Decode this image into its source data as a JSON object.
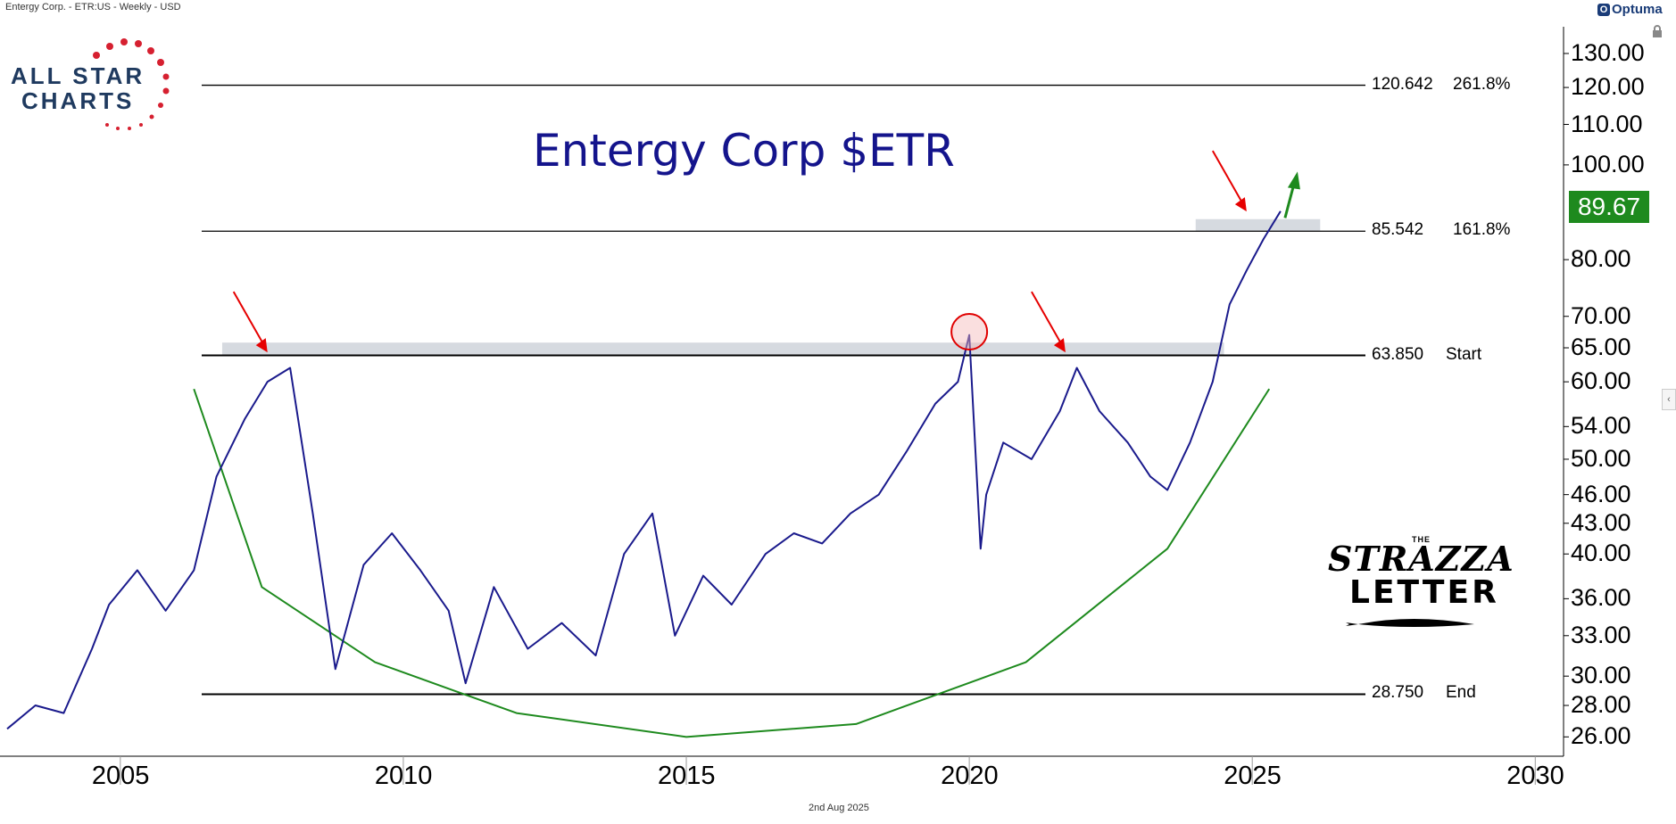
{
  "header": {
    "info": "Entergy Corp. - ETR:US - Weekly - USD",
    "brand": "Optuma"
  },
  "footer": {
    "date": "2nd Aug 2025"
  },
  "logos": {
    "left": {
      "line1": "ALL STAR",
      "line2": "CHARTS"
    },
    "right": {
      "the": "THE",
      "word1": "STRAZZA",
      "word2": "LETTER"
    }
  },
  "colors": {
    "price": "#1a1a8c",
    "arc": "#1e8a1e",
    "arrow_red": "#e60000",
    "arrow_green": "#1e8a1e",
    "zone": "#c8ced6",
    "last_price_bg": "#1e8a1e"
  },
  "chart_data": {
    "type": "line",
    "title": "Entergy Corp $ETR",
    "scale": "log",
    "ylim": [
      25,
      135
    ],
    "xlim": [
      2003.0,
      2030.5
    ],
    "x_ticks": [
      "2005",
      "2010",
      "2015",
      "2020",
      "2025",
      "2030"
    ],
    "y_ticks": [
      "130.00",
      "120.00",
      "110.00",
      "100.00",
      "80.00",
      "70.00",
      "65.00",
      "60.00",
      "54.00",
      "50.00",
      "46.00",
      "43.00",
      "40.00",
      "36.00",
      "33.00",
      "30.00",
      "28.00",
      "26.00"
    ],
    "last_price": "89.67",
    "levels": [
      {
        "value": "120.642",
        "label": "261.8%",
        "y": 120.642
      },
      {
        "value": "85.542",
        "label": "161.8%",
        "y": 85.542
      },
      {
        "value": "63.850",
        "label": "Start",
        "y": 63.85
      },
      {
        "value": "28.750",
        "label": "End",
        "y": 28.75
      }
    ],
    "series": [
      {
        "x": [
          2003.0,
          2003.5,
          2004.0,
          2004.5,
          2004.8,
          2005.3,
          2005.8,
          2006.3,
          2006.7,
          2007.2,
          2007.6,
          2008.0,
          2008.4,
          2008.8,
          2009.3,
          2009.8,
          2010.3,
          2010.8,
          2011.1,
          2011.6,
          2012.2,
          2012.8,
          2013.4,
          2013.9,
          2014.4,
          2014.8,
          2015.3,
          2015.8,
          2016.4,
          2016.9,
          2017.4,
          2017.9,
          2018.4,
          2018.9,
          2019.4,
          2019.8,
          2020.0,
          2020.2,
          2020.3,
          2020.6,
          2021.1,
          2021.6,
          2021.9,
          2022.3,
          2022.8,
          2023.2,
          2023.5,
          2023.9,
          2024.3,
          2024.6,
          2024.9,
          2025.2,
          2025.5
        ],
        "y": [
          26.5,
          28.0,
          27.5,
          32.0,
          35.5,
          38.5,
          35.0,
          38.5,
          48.0,
          55.0,
          60.0,
          62.0,
          44.0,
          30.5,
          39.0,
          42.0,
          38.5,
          35.0,
          29.5,
          37.0,
          32.0,
          34.0,
          31.5,
          40.0,
          44.0,
          33.0,
          38.0,
          35.5,
          40.0,
          42.0,
          41.0,
          44.0,
          46.0,
          51.0,
          57.0,
          60.0,
          67.0,
          40.5,
          46.0,
          52.0,
          50.0,
          56.0,
          62.0,
          56.0,
          52.0,
          48.0,
          46.5,
          52.0,
          60.0,
          72.0,
          78.0,
          84.0,
          89.67
        ]
      }
    ],
    "annotations": {
      "zones": [
        {
          "x0": 2006.8,
          "x1": 2024.5,
          "y0": 63.85,
          "y1": 65.8
        },
        {
          "x0": 2024.0,
          "x1": 2026.2,
          "y0": 85.542,
          "y1": 88.0
        }
      ],
      "circle": {
        "x": 2020.0,
        "y": 67.5
      },
      "red_arrows": [
        {
          "x": 2007.6,
          "y": 63.5
        },
        {
          "x": 2021.7,
          "y": 63.5
        },
        {
          "x": 2024.9,
          "y": 88.5
        }
      ],
      "green_arrow": {
        "x": 2025.5,
        "y": 96.0
      },
      "arc_points": [
        [
          2006.3,
          59.0
        ],
        [
          2007.5,
          37.0
        ],
        [
          2009.5,
          31.0
        ],
        [
          2012.0,
          27.5
        ],
        [
          2015.0,
          26.0
        ],
        [
          2018.0,
          26.8
        ],
        [
          2021.0,
          31.0
        ],
        [
          2023.5,
          40.5
        ],
        [
          2025.3,
          59.0
        ]
      ]
    }
  }
}
